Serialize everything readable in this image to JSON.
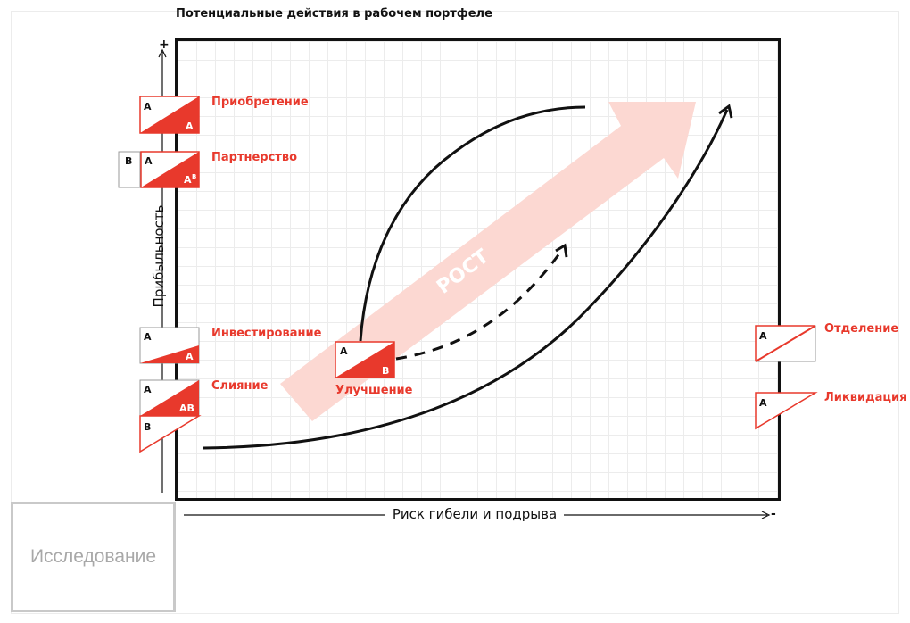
{
  "title": "Потенциальные действия в рабочем портфеле",
  "axes": {
    "y_label": "Прибыльность",
    "x_label": "Риск гибели и подрыва",
    "y_plus": "+",
    "x_minus": "-"
  },
  "arrow_label": "РОСТ",
  "explore_label": "Исследование",
  "actions": {
    "acquisition": {
      "label": "Приобретение",
      "top": "A",
      "bottom": "A"
    },
    "partnership": {
      "label": "Партнерство",
      "left": "B",
      "top": "A",
      "bottom": "A",
      "bottom_sup": "B"
    },
    "investing": {
      "label": "Инвестирование",
      "top": "A",
      "bottom": "A"
    },
    "merger": {
      "label": "Слияние",
      "top": "A",
      "middle": "AB",
      "bottom": "B"
    },
    "improvement": {
      "label": "Улучшение",
      "top": "A",
      "bottom": "B"
    },
    "separation": {
      "label": "Отделение",
      "top": "A"
    },
    "liquidation": {
      "label": "Ликвидация",
      "top": "A"
    }
  },
  "colors": {
    "accent": "#e8392c",
    "arrow_fill": "#fcd8d2",
    "ink": "#111111",
    "explore_border": "#c9c9c9"
  }
}
